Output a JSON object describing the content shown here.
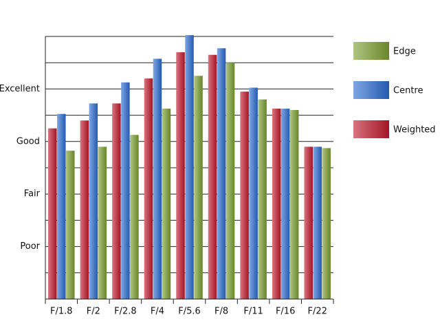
{
  "chart_data": {
    "type": "bar",
    "categories": [
      "F/1.8",
      "F/2",
      "F/2.8",
      "F/4",
      "F/5.6",
      "F/8",
      "F/11",
      "F/16",
      "F/22"
    ],
    "series": [
      {
        "name": "Weighted",
        "color": "#c0182a",
        "values": [
          6.5,
          6.8,
          7.45,
          8.4,
          9.4,
          9.3,
          7.9,
          7.25,
          5.8
        ]
      },
      {
        "name": "Centre",
        "color": "#2a6ad0",
        "values": [
          7.05,
          7.45,
          8.25,
          9.15,
          10.05,
          9.55,
          8.05,
          7.25,
          5.8
        ]
      },
      {
        "name": "Edge",
        "color": "#7a9e30",
        "values": [
          5.65,
          5.8,
          6.25,
          7.25,
          8.5,
          9.0,
          7.6,
          7.2,
          5.75
        ]
      }
    ],
    "ylim": [
      0,
      10
    ],
    "yticks": [
      {
        "value": 2,
        "label": "Poor"
      },
      {
        "value": 4,
        "label": "Fair"
      },
      {
        "value": 6,
        "label": "Good"
      },
      {
        "value": 8,
        "label": "Excellent"
      }
    ],
    "minor_yticks": [
      1,
      3,
      5,
      7,
      9,
      10
    ],
    "grid": true,
    "legend": "right"
  }
}
